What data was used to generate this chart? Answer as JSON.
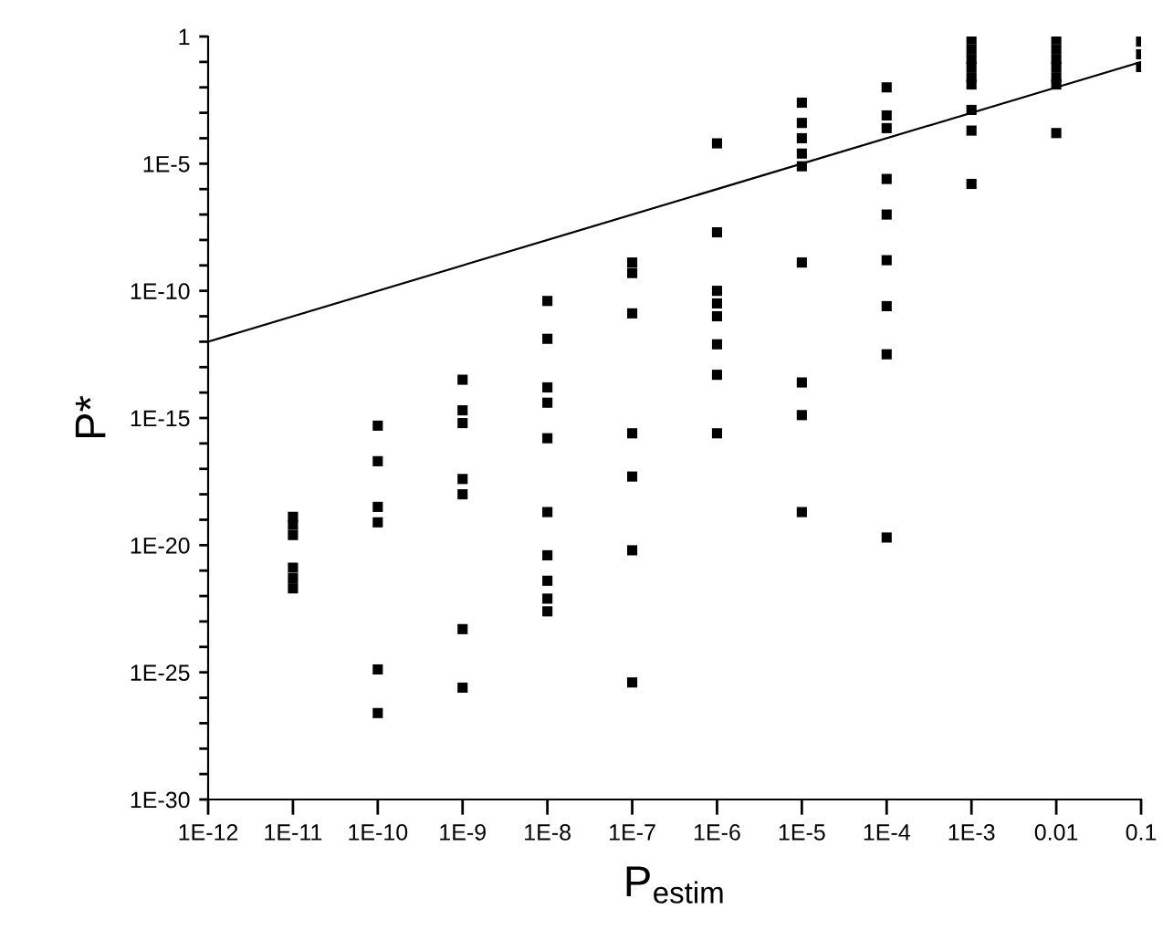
{
  "chart_data": {
    "type": "scatter",
    "xlabel": "P$_{estim}$",
    "ylabel": "P*",
    "log": "xy",
    "marker": "square",
    "grid": false,
    "legend": false,
    "xlim": [
      1e-12,
      0.1
    ],
    "ylim": [
      1e-30,
      1
    ],
    "xticks": [
      {
        "value": 1e-12,
        "label": "1E-12"
      },
      {
        "value": 1e-11,
        "label": "1E-11"
      },
      {
        "value": 1e-10,
        "label": "1E-10"
      },
      {
        "value": 1e-09,
        "label": "1E-9"
      },
      {
        "value": 1e-08,
        "label": "1E-8"
      },
      {
        "value": 1e-07,
        "label": "1E-7"
      },
      {
        "value": 1e-06,
        "label": "1E-6"
      },
      {
        "value": 1e-05,
        "label": "1E-5"
      },
      {
        "value": 0.0001,
        "label": "1E-4"
      },
      {
        "value": 0.001,
        "label": "1E-3"
      },
      0.01,
      0.1
    ],
    "yticks": [
      1,
      {
        "value": 0.1,
        "label": null
      },
      {
        "value": 0.01,
        "label": null
      },
      {
        "value": 0.001,
        "label": null
      },
      {
        "value": 0.0001,
        "label": null
      },
      {
        "value": 1e-05,
        "label": "1E-5"
      },
      {
        "value": 1e-06,
        "label": null
      },
      {
        "value": 1e-07,
        "label": null
      },
      {
        "value": 1e-08,
        "label": null
      },
      {
        "value": 1e-09,
        "label": null
      },
      {
        "value": 1e-10,
        "label": "1E-10"
      },
      {
        "value": 1e-11,
        "label": null
      },
      {
        "value": 1e-12,
        "label": null
      },
      {
        "value": 1e-13,
        "label": null
      },
      {
        "value": 1e-14,
        "label": null
      },
      {
        "value": 1e-15,
        "label": "1E-15"
      },
      {
        "value": 1e-16,
        "label": null
      },
      {
        "value": 1e-17,
        "label": null
      },
      {
        "value": 1e-18,
        "label": null
      },
      {
        "value": 1e-19,
        "label": null
      },
      {
        "value": 1e-20,
        "label": "1E-20"
      },
      {
        "value": 1e-21,
        "label": null
      },
      {
        "value": 1e-22,
        "label": null
      },
      {
        "value": 1e-23,
        "label": null
      },
      {
        "value": 1e-24,
        "label": null
      },
      {
        "value": 1e-25,
        "label": "1E-25"
      },
      {
        "value": 1e-26,
        "label": null
      },
      {
        "value": 1e-27,
        "label": null
      },
      {
        "value": 1e-28,
        "label": null
      },
      {
        "value": 1e-29,
        "label": null
      },
      {
        "value": 1e-30,
        "label": "1E-30"
      }
    ],
    "series": [
      {
        "color": "#000000",
        "x": [
          1e-11,
          1e-11,
          1e-11,
          1e-11,
          1e-11,
          1e-11,
          1e-10,
          1e-10,
          1e-10,
          1e-10,
          1e-10,
          1e-10,
          1e-09,
          1e-09,
          1e-09,
          1e-09,
          1e-09,
          1e-09,
          1e-09,
          1e-08,
          1e-08,
          1e-08,
          1e-08,
          1e-08,
          1e-08,
          1e-08,
          1e-08,
          1e-08,
          1e-08,
          1e-07,
          1e-07,
          1e-07,
          1e-07,
          1e-07,
          1e-07,
          1e-07,
          1e-06,
          1e-06,
          1e-06,
          1e-06,
          1e-06,
          1e-06,
          1e-06,
          1e-06,
          1e-05,
          1e-05,
          1e-05,
          1e-05,
          1e-05,
          1e-05,
          1e-05,
          1e-05,
          1e-05,
          0.0001,
          0.0001,
          0.0001,
          0.0001,
          0.0001,
          0.0001,
          0.0001,
          0.0001,
          0.0001,
          0.001,
          0.001,
          0.001,
          0.001,
          0.001,
          0.001,
          0.001,
          0.001,
          0.001,
          0.01,
          0.01,
          0.01,
          0.01,
          0.01,
          0.01,
          0.01,
          0.1,
          0.1,
          0.1
        ],
        "values": [
          1.3e-19,
          6.3e-20,
          2.5e-20,
          1.3e-21,
          5e-22,
          2e-22,
          5e-16,
          2e-17,
          3.2e-19,
          7.9e-20,
          1.3e-25,
          2.5e-27,
          3.2e-14,
          2e-15,
          6.3e-16,
          4e-18,
          1e-18,
          5e-24,
          2.5e-26,
          4e-11,
          1.3e-12,
          1.6e-14,
          4e-15,
          1.6e-16,
          2e-19,
          4e-21,
          4e-22,
          7.9e-23,
          2.5e-23,
          1.3e-09,
          5e-10,
          1.3e-11,
          2.5e-16,
          5e-18,
          6.3e-21,
          4e-26,
          6.3e-05,
          2e-08,
          1e-10,
          3.2e-11,
          1e-11,
          7.9e-13,
          5e-14,
          2.5e-16,
          0.0025,
          0.0004,
          0.0001,
          2.5e-05,
          7.9e-06,
          1.3e-09,
          2.5e-14,
          1.3e-15,
          2e-19,
          0.01,
          0.00079,
          0.00025,
          2.5e-06,
          1e-07,
          1.6e-09,
          2.5e-11,
          3.2e-13,
          2e-20,
          0.79,
          0.32,
          0.13,
          0.063,
          0.025,
          0.013,
          0.0013,
          0.0002,
          1.6e-06,
          0.79,
          0.32,
          0.13,
          0.063,
          0.025,
          0.013,
          0.00016,
          0.63,
          0.2,
          0.063
        ]
      },
      {
        "type": "line",
        "color": "#000000",
        "marker": "none",
        "line_style": "solid",
        "x": [
          1e-12,
          0.1
        ],
        "values": [
          1e-12,
          0.1
        ]
      }
    ]
  }
}
